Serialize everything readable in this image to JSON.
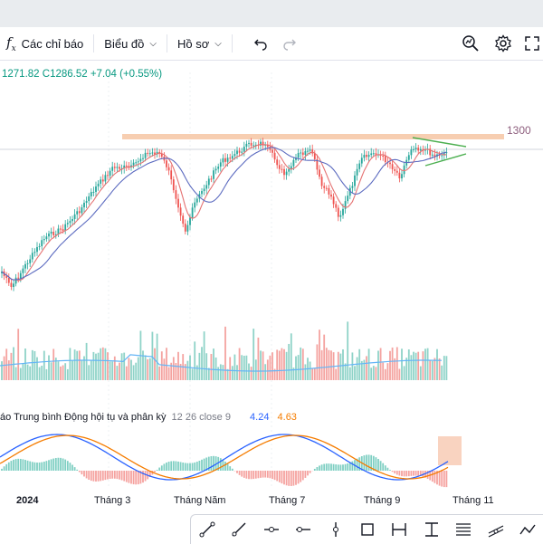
{
  "toolbar": {
    "indicators_label": "Các chỉ báo",
    "chart_label": "Biểu đồ",
    "profile_label": "Hồ sơ"
  },
  "ohlc": {
    "text": "1271.82  C1286.52  +7.04 (+0.55%)",
    "color": "#089981"
  },
  "price_level_label": "1300",
  "macd": {
    "title": "áo Trung bình Động hội tụ và phân kỳ",
    "params": "12 26 close 9",
    "value_1": "4.24",
    "value_2": "4.63",
    "color_1": "#2962ff",
    "color_2": "#f57c00"
  },
  "x_axis_labels": [
    "2024",
    "Tháng 3",
    "Tháng Năm",
    "Tháng 7",
    "Tháng 9",
    "Tháng 11"
  ],
  "colors": {
    "up": "#26a69a",
    "down": "#ef5350",
    "ma_fast": "#e57373",
    "ma_slow": "#5c6bc0",
    "resistance": "#f6c9a8",
    "triangle": "#4caf50",
    "volume_ma": "#64b5f6"
  },
  "bottom_tools": [
    "trend-line-icon",
    "ray-icon",
    "horizontal-ray-icon",
    "horizontal-line-icon",
    "vertical-line-icon",
    "rectangle-icon",
    "price-range-icon",
    "date-range-icon",
    "fib-icon",
    "regression-icon",
    "path-icon"
  ]
}
